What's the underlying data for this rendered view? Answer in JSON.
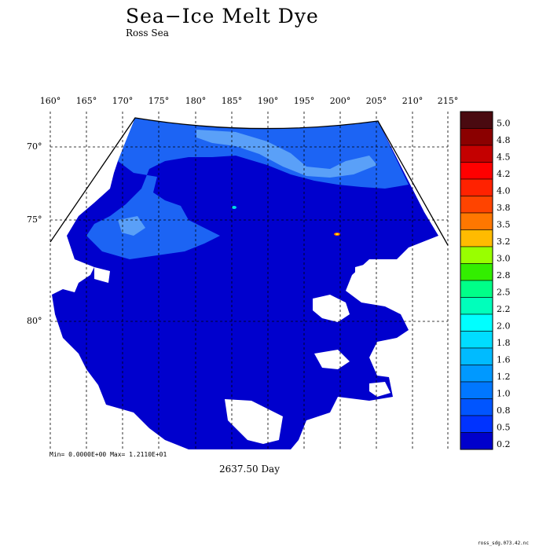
{
  "title": "Sea−Ice Melt Dye",
  "subtitle": "Ross Sea",
  "lon_labels": [
    "160°",
    "165°",
    "170°",
    "175°",
    "180°",
    "185°",
    "190°",
    "195°",
    "200°",
    "205°",
    "210°",
    "215°"
  ],
  "lat_labels": [
    "70°",
    "75°",
    "80°"
  ],
  "stats": "Min= 0.0000E+00  Max= 1.2110E+01",
  "time_label": "2637.50 Day",
  "footer": "ross_sdg.073.42.nc",
  "colorbar": {
    "labels": [
      "5.0",
      "4.8",
      "4.5",
      "4.2",
      "4.0",
      "3.8",
      "3.5",
      "3.2",
      "3.0",
      "2.8",
      "2.5",
      "2.2",
      "2.0",
      "1.8",
      "1.6",
      "1.2",
      "1.0",
      "0.8",
      "0.5",
      "0.2"
    ],
    "colors": [
      "#4a0a10",
      "#8b0000",
      "#c40000",
      "#ff0000",
      "#ff2200",
      "#ff4400",
      "#ff7700",
      "#ffbb00",
      "#99ff00",
      "#33ee00",
      "#00ff88",
      "#00ffbb",
      "#00ffff",
      "#00ddff",
      "#00bbff",
      "#0099ff",
      "#0077ff",
      "#0055ff",
      "#0033ff",
      "#0000cc"
    ]
  },
  "map_colors": {
    "ocean_deep": "#0000cd",
    "ocean_mid": "#1030e8",
    "ocean_light": "#1c64f4",
    "ocean_pale": "#5aa0f8",
    "land": "#ffffff"
  }
}
